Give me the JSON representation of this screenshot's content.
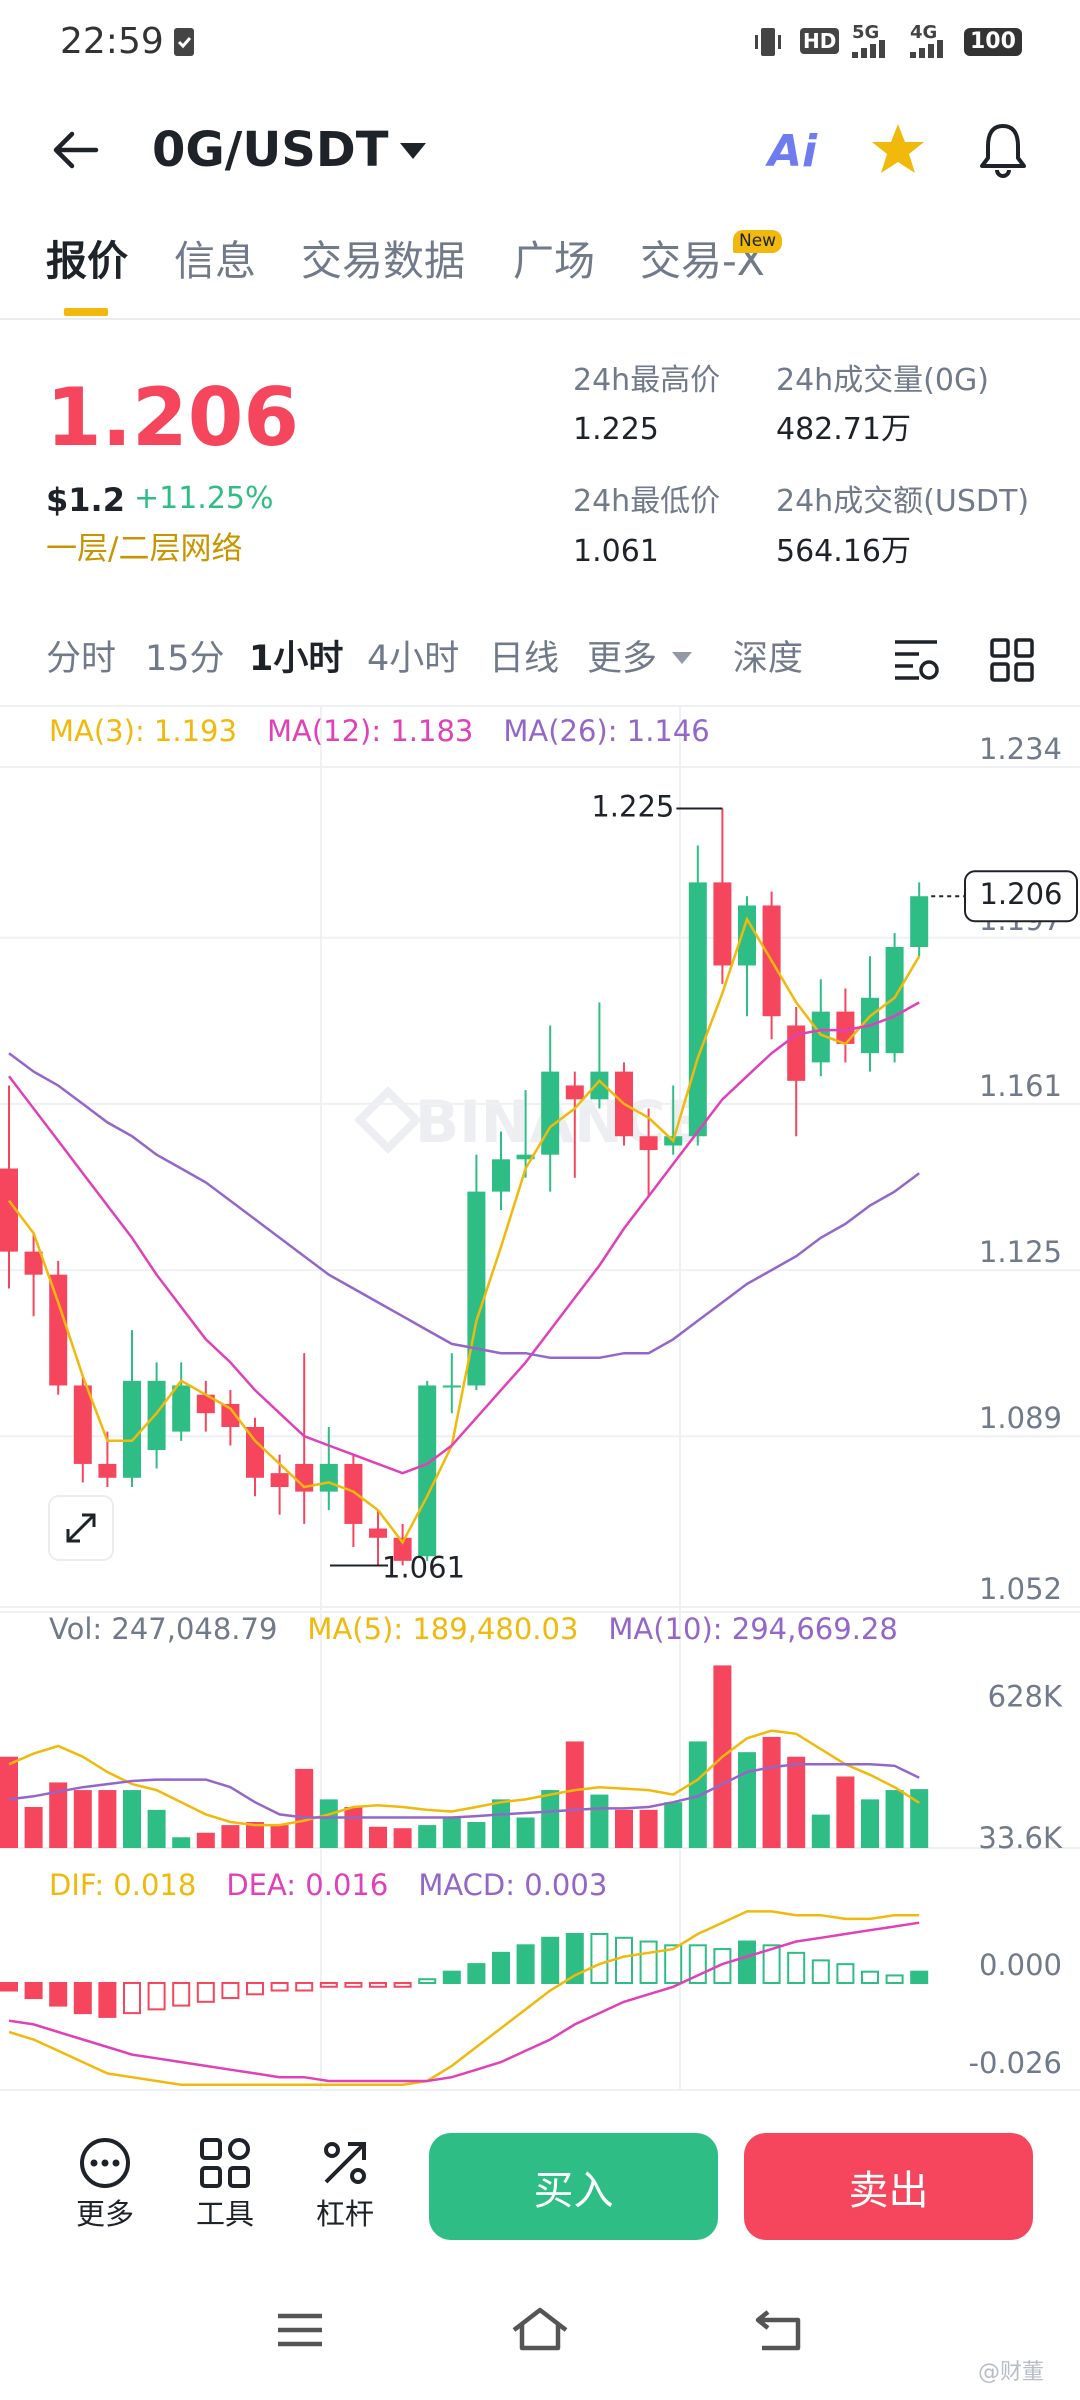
{
  "status_bar": {
    "time": "22:59",
    "badges": [
      "HD",
      "5G",
      "4G"
    ],
    "battery": "100"
  },
  "header": {
    "pair": "0G/USDT",
    "ai": "Ai"
  },
  "tabs": {
    "items": [
      "报价",
      "信息",
      "交易数据",
      "广场",
      "交易-X"
    ],
    "badge": "New"
  },
  "ticker": {
    "price": "1.206",
    "usd": "$1.2",
    "change": "+11.25%",
    "network": "一层/二层网络"
  },
  "stats": [
    {
      "label": "24h最高价",
      "value": "1.225"
    },
    {
      "label": "24h成交量(0G)",
      "value": "482.71万"
    },
    {
      "label": "24h最低价",
      "value": "1.061"
    },
    {
      "label": "24h成交额(USDT)",
      "value": "564.16万"
    }
  ],
  "intervals": [
    "分时",
    "15分",
    "1小时",
    "4小时",
    "日线",
    "更多",
    "深度"
  ],
  "watermark": "BINANCE",
  "chart_data": [
    {
      "type": "candlestick",
      "up_color": "#2ebd85",
      "down_color": "#f6465d",
      "open": [
        1.147,
        1.129,
        1.124,
        1.1,
        1.083,
        1.08,
        1.086,
        1.09,
        1.098,
        1.096,
        1.091,
        1.081,
        1.083,
        1.077,
        1.083,
        1.069,
        1.067,
        1.063,
        1.1,
        1.1,
        1.142,
        1.149,
        1.15,
        1.165,
        1.162,
        1.168,
        1.154,
        1.152,
        1.154,
        1.209,
        1.191,
        1.204,
        1.178,
        1.17,
        1.181,
        1.172,
        1.172,
        1.195
      ],
      "high": [
        1.165,
        1.133,
        1.127,
        1.102,
        1.09,
        1.112,
        1.105,
        1.105,
        1.101,
        1.099,
        1.093,
        1.085,
        1.107,
        1.091,
        1.085,
        1.073,
        1.07,
        1.101,
        1.107,
        1.15,
        1.155,
        1.164,
        1.178,
        1.168,
        1.183,
        1.17,
        1.16,
        1.165,
        1.217,
        1.225,
        1.206,
        1.207,
        1.182,
        1.188,
        1.186,
        1.193,
        1.198,
        1.209
      ],
      "low": [
        1.121,
        1.115,
        1.098,
        1.079,
        1.078,
        1.078,
        1.082,
        1.088,
        1.09,
        1.087,
        1.076,
        1.072,
        1.07,
        1.073,
        1.065,
        1.061,
        1.061,
        1.062,
        1.094,
        1.099,
        1.138,
        1.145,
        1.142,
        1.145,
        1.16,
        1.152,
        1.141,
        1.15,
        1.152,
        1.187,
        1.18,
        1.175,
        1.154,
        1.167,
        1.17,
        1.168,
        1.17,
        1.193
      ],
      "close": [
        1.129,
        1.124,
        1.1,
        1.083,
        1.08,
        1.101,
        1.101,
        1.1,
        1.094,
        1.091,
        1.08,
        1.078,
        1.077,
        1.083,
        1.07,
        1.067,
        1.062,
        1.1,
        1.1,
        1.142,
        1.149,
        1.15,
        1.168,
        1.162,
        1.168,
        1.154,
        1.151,
        1.154,
        1.209,
        1.191,
        1.204,
        1.18,
        1.166,
        1.181,
        1.174,
        1.184,
        1.195,
        1.206
      ],
      "series": [
        {
          "label": "MA(3): 1.193",
          "color": "#f0b90b",
          "values": [
            1.14,
            1.133,
            1.118,
            1.102,
            1.088,
            1.088,
            1.094,
            1.101,
            1.098,
            1.095,
            1.088,
            1.083,
            1.078,
            1.079,
            1.077,
            1.073,
            1.066,
            1.076,
            1.087,
            1.114,
            1.13,
            1.147,
            1.156,
            1.16,
            1.166,
            1.161,
            1.158,
            1.153,
            1.171,
            1.185,
            1.201,
            1.192,
            1.183,
            1.176,
            1.174,
            1.18,
            1.184,
            1.193
          ]
        },
        {
          "label": "MA(12): 1.183",
          "color": "#e040b8",
          "values": [
            1.167,
            1.16,
            1.153,
            1.146,
            1.139,
            1.132,
            1.124,
            1.117,
            1.11,
            1.105,
            1.099,
            1.094,
            1.089,
            1.087,
            1.085,
            1.083,
            1.081,
            1.083,
            1.087,
            1.093,
            1.099,
            1.105,
            1.112,
            1.119,
            1.126,
            1.134,
            1.141,
            1.148,
            1.155,
            1.162,
            1.167,
            1.172,
            1.176,
            1.177,
            1.177,
            1.178,
            1.18,
            1.183
          ]
        },
        {
          "label": "MA(26): 1.146",
          "color": "#9466c9",
          "values": [
            1.172,
            1.168,
            1.165,
            1.161,
            1.157,
            1.154,
            1.15,
            1.147,
            1.144,
            1.14,
            1.136,
            1.132,
            1.128,
            1.124,
            1.121,
            1.118,
            1.115,
            1.112,
            1.109,
            1.108,
            1.107,
            1.107,
            1.106,
            1.106,
            1.106,
            1.107,
            1.107,
            1.11,
            1.114,
            1.118,
            1.122,
            1.125,
            1.128,
            1.132,
            1.135,
            1.139,
            1.142,
            1.146
          ]
        }
      ],
      "ylim": [
        1.052,
        1.234
      ],
      "yticks": [
        1.234,
        1.197,
        1.161,
        1.125,
        1.089,
        1.052
      ],
      "grid": true,
      "high_label": "1.225",
      "low_label": "1.061",
      "last_price_label": "1.206"
    },
    {
      "type": "bar",
      "label": "Vol: 247,048.79",
      "values": [
        383000,
        172000,
        275000,
        243000,
        243000,
        243000,
        160000,
        45000,
        64000,
        96000,
        109000,
        96000,
        332000,
        204000,
        172000,
        89000,
        83000,
        96000,
        128000,
        109000,
        204000,
        128000,
        243000,
        447000,
        224000,
        160000,
        160000,
        192000,
        447000,
        766000,
        402000,
        466000,
        383000,
        140000,
        300000,
        204000,
        243000,
        247048.79
      ],
      "series": [
        {
          "label": "MA(5): 189,480.03",
          "color": "#f0b90b",
          "values": [
            351000,
            396000,
            428000,
            383000,
            319000,
            268000,
            243000,
            192000,
            141000,
            109000,
            96000,
            96000,
            115000,
            141000,
            172000,
            179000,
            172000,
            160000,
            153000,
            172000,
            192000,
            204000,
            224000,
            243000,
            255000,
            249000,
            243000,
            224000,
            287000,
            383000,
            460000,
            492000,
            479000,
            415000,
            351000,
            307000,
            255000,
            189480.03
          ]
        },
        {
          "label": "MA(10): 294,669.28",
          "color": "#9466c9",
          "values": [
            204000,
            217000,
            236000,
            255000,
            268000,
            281000,
            287000,
            287000,
            287000,
            255000,
            192000,
            141000,
            128000,
            128000,
            128000,
            128000,
            128000,
            128000,
            128000,
            134000,
            141000,
            147000,
            153000,
            160000,
            166000,
            166000,
            172000,
            192000,
            217000,
            268000,
            319000,
            339000,
            351000,
            351000,
            351000,
            351000,
            345000,
            294669.28
          ]
        }
      ],
      "ylim": [
        0,
        990000
      ],
      "yticks": [
        {
          "value": 628000,
          "label": "628K"
        },
        {
          "value": 33600,
          "label": "33.6K"
        }
      ],
      "grid": false
    },
    {
      "type": "macd",
      "up_color": "#2ebd85",
      "down_color": "#f6465d",
      "values": [
        -0.002,
        -0.004,
        -0.006,
        -0.008,
        -0.009,
        -0.008,
        -0.007,
        -0.006,
        -0.005,
        -0.004,
        -0.003,
        -0.002,
        -0.002,
        -0.001,
        -0.001,
        -0.001,
        -0.001,
        0.001,
        0.003,
        0.005,
        0.008,
        0.01,
        0.012,
        0.013,
        0.013,
        0.012,
        0.011,
        0.01,
        0.01,
        0.009,
        0.011,
        0.01,
        0.008,
        0.006,
        0.005,
        0.003,
        0.002,
        0.003
      ],
      "series": [
        {
          "label": "DIF: 0.018",
          "color": "#f0b90b",
          "values": [
            -0.013,
            -0.015,
            -0.018,
            -0.021,
            -0.024,
            -0.025,
            -0.026,
            -0.027,
            -0.027,
            -0.027,
            -0.027,
            -0.027,
            -0.027,
            -0.027,
            -0.027,
            -0.027,
            -0.027,
            -0.026,
            -0.022,
            -0.017,
            -0.012,
            -0.007,
            -0.002,
            0.002,
            0.005,
            0.007,
            0.008,
            0.009,
            0.013,
            0.016,
            0.019,
            0.019,
            0.018,
            0.018,
            0.017,
            0.017,
            0.018,
            0.018
          ]
        },
        {
          "label": "DEA: 0.016",
          "color": "#e040b8",
          "values": [
            -0.01,
            -0.011,
            -0.013,
            -0.015,
            -0.017,
            -0.019,
            -0.02,
            -0.021,
            -0.022,
            -0.023,
            -0.024,
            -0.025,
            -0.025,
            -0.026,
            -0.026,
            -0.026,
            -0.026,
            -0.026,
            -0.025,
            -0.023,
            -0.021,
            -0.018,
            -0.015,
            -0.011,
            -0.008,
            -0.005,
            -0.003,
            -0.001,
            0.002,
            0.005,
            0.007,
            0.009,
            0.011,
            0.012,
            0.013,
            0.014,
            0.015,
            0.016
          ]
        }
      ],
      "hist_label": "MACD: 0.003",
      "hist_color": "#9466c9",
      "ylim": [
        -0.0284,
        0.0337
      ],
      "yticks": [
        {
          "value": 0,
          "label": "0.000"
        },
        -0.026
      ],
      "grid": false
    }
  ],
  "bottom_bar": {
    "tools": [
      "更多",
      "工具",
      "杠杆"
    ],
    "buy": "买入",
    "sell": "卖出"
  },
  "credit": "@财董"
}
